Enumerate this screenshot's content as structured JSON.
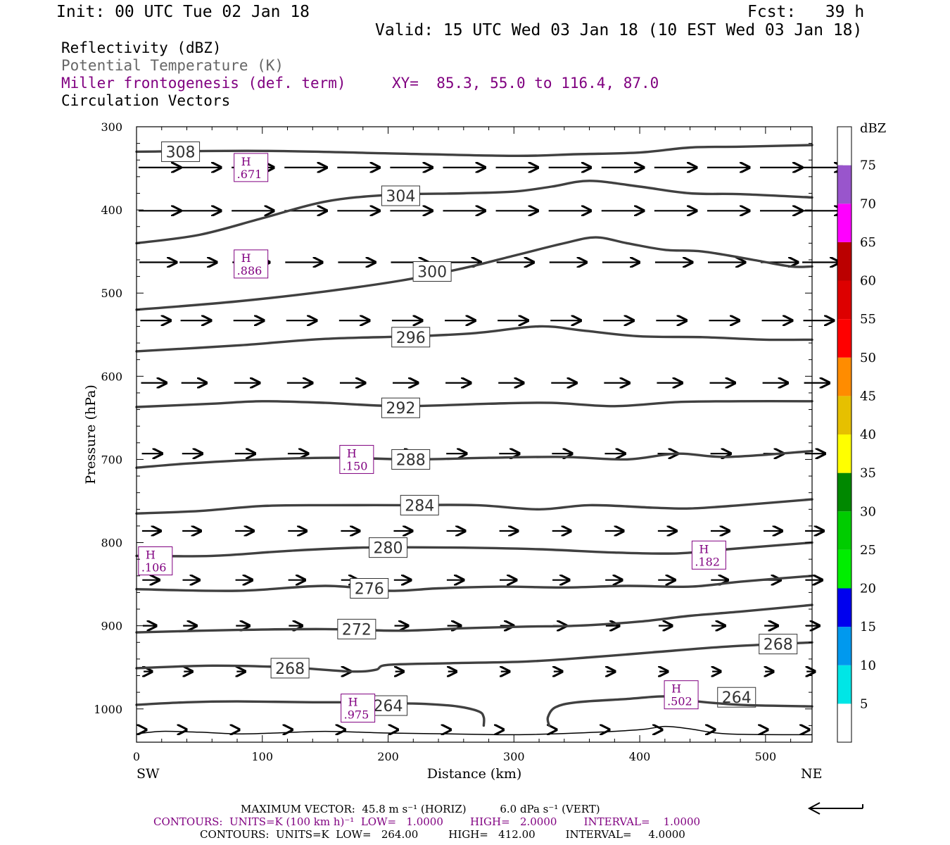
{
  "header": {
    "init": "Init: 00 UTC Tue 02 Jan 18",
    "fcst": "Fcst:   39 h",
    "valid": "Valid: 15 UTC Wed 03 Jan 18 (10 EST Wed 03 Jan 18)",
    "fields": [
      {
        "label": "Reflectivity (dBZ)",
        "color": "#000000"
      },
      {
        "label": "Potential Temperature (K)",
        "color": "#666666"
      },
      {
        "label": "Miller frontogenesis (def. term)",
        "color": "#800080"
      },
      {
        "label": "Circulation Vectors",
        "color": "#000000"
      }
    ],
    "xy": "XY=  85.3, 55.0 to 116.4, 87.0"
  },
  "footer": {
    "max_vector": "MAXIMUM VECTOR:  45.8 m s⁻¹ (HORIZ)          6.0 dPa s⁻¹ (VERT)",
    "contours_front": "CONTOURS:  UNITS=K (100 km h)⁻¹  LOW=   1.0000        HIGH=   2.0000        INTERVAL=    1.0000",
    "contours_theta": "CONTOURS:  UNITS=K  LOW=   264.00         HIGH=   412.00         INTERVAL=     4.0000"
  },
  "colors": {
    "theta": "#404040",
    "front": "#800080",
    "vector": "#000000"
  },
  "chart_data": {
    "type": "cross-section",
    "xlabel": "Distance (km)",
    "ylabel": "Pressure (hPa)",
    "xlim": [
      0,
      537
    ],
    "ylim": [
      1040,
      300
    ],
    "xticks": [
      0,
      100,
      200,
      300,
      400,
      500
    ],
    "yticks": [
      300,
      400,
      500,
      600,
      700,
      800,
      900,
      1000
    ],
    "left_end_label": "SW",
    "right_end_label": "NE",
    "colorbar": {
      "unit": "dBZ",
      "levels": [
        5,
        10,
        15,
        20,
        25,
        30,
        35,
        40,
        45,
        50,
        55,
        60,
        65,
        70,
        75
      ],
      "colors": [
        "#ffffff",
        "#00e6e6",
        "#0099ee",
        "#0000ee",
        "#00ee00",
        "#00cc00",
        "#008800",
        "#ffff00",
        "#e6c000",
        "#ff8c00",
        "#ff0000",
        "#dd0000",
        "#bb0000",
        "#ff00ff",
        "#9955cc",
        "#ffffff"
      ]
    },
    "theta_contours": [
      {
        "value": 308,
        "labels": [
          [
            35,
            330
          ]
        ],
        "points": [
          [
            0,
            330
          ],
          [
            100,
            329
          ],
          [
            200,
            332
          ],
          [
            300,
            335
          ],
          [
            350,
            333
          ],
          [
            400,
            331
          ],
          [
            440,
            325
          ],
          [
            480,
            324
          ],
          [
            537,
            322
          ]
        ]
      },
      {
        "value": 304,
        "labels": [
          [
            210,
            383
          ]
        ],
        "points": [
          [
            0,
            440
          ],
          [
            50,
            430
          ],
          [
            100,
            410
          ],
          [
            150,
            390
          ],
          [
            200,
            382
          ],
          [
            260,
            380
          ],
          [
            300,
            378
          ],
          [
            330,
            372
          ],
          [
            360,
            365
          ],
          [
            400,
            372
          ],
          [
            440,
            380
          ],
          [
            480,
            381
          ],
          [
            537,
            385
          ]
        ]
      },
      {
        "value": 300,
        "labels": [
          [
            235,
            474
          ]
        ],
        "points": [
          [
            0,
            520
          ],
          [
            80,
            510
          ],
          [
            150,
            498
          ],
          [
            210,
            485
          ],
          [
            260,
            470
          ],
          [
            300,
            455
          ],
          [
            340,
            440
          ],
          [
            365,
            433
          ],
          [
            390,
            440
          ],
          [
            420,
            448
          ],
          [
            450,
            450
          ],
          [
            490,
            460
          ],
          [
            520,
            468
          ],
          [
            537,
            468
          ]
        ]
      },
      {
        "value": 296,
        "labels": [
          [
            218,
            553
          ]
        ],
        "points": [
          [
            0,
            570
          ],
          [
            80,
            563
          ],
          [
            150,
            555
          ],
          [
            220,
            552
          ],
          [
            270,
            548
          ],
          [
            320,
            540
          ],
          [
            355,
            545
          ],
          [
            400,
            552
          ],
          [
            450,
            553
          ],
          [
            500,
            556
          ],
          [
            537,
            556
          ]
        ]
      },
      {
        "value": 292,
        "labels": [
          [
            210,
            638
          ]
        ],
        "points": [
          [
            0,
            637
          ],
          [
            60,
            633
          ],
          [
            100,
            630
          ],
          [
            150,
            632
          ],
          [
            210,
            636
          ],
          [
            280,
            633
          ],
          [
            330,
            632
          ],
          [
            380,
            636
          ],
          [
            430,
            631
          ],
          [
            480,
            630
          ],
          [
            537,
            630
          ]
        ]
      },
      {
        "value": 288,
        "labels": [
          [
            218,
            700
          ]
        ],
        "points": [
          [
            0,
            710
          ],
          [
            40,
            705
          ],
          [
            100,
            700
          ],
          [
            160,
            698
          ],
          [
            220,
            700
          ],
          [
            280,
            698
          ],
          [
            340,
            697
          ],
          [
            390,
            700
          ],
          [
            430,
            693
          ],
          [
            470,
            697
          ],
          [
            537,
            690
          ]
        ]
      },
      {
        "value": 284,
        "labels": [
          [
            225,
            755
          ]
        ],
        "points": [
          [
            0,
            765
          ],
          [
            50,
            762
          ],
          [
            100,
            756
          ],
          [
            150,
            755
          ],
          [
            210,
            755
          ],
          [
            270,
            755
          ],
          [
            320,
            760
          ],
          [
            360,
            755
          ],
          [
            410,
            758
          ],
          [
            440,
            759
          ],
          [
            480,
            755
          ],
          [
            537,
            748
          ]
        ]
      },
      {
        "value": 280,
        "labels": [
          [
            200,
            806
          ]
        ],
        "points": [
          [
            0,
            816
          ],
          [
            60,
            816
          ],
          [
            120,
            810
          ],
          [
            180,
            806
          ],
          [
            250,
            806
          ],
          [
            320,
            808
          ],
          [
            380,
            812
          ],
          [
            430,
            813
          ],
          [
            470,
            808
          ],
          [
            537,
            800
          ]
        ]
      },
      {
        "value": 276,
        "labels": [
          [
            185,
            855
          ]
        ],
        "points": [
          [
            0,
            856
          ],
          [
            80,
            858
          ],
          [
            150,
            852
          ],
          [
            200,
            858
          ],
          [
            240,
            855
          ],
          [
            290,
            853
          ],
          [
            340,
            854
          ],
          [
            390,
            852
          ],
          [
            440,
            853
          ],
          [
            480,
            847
          ],
          [
            537,
            840
          ]
        ]
      },
      {
        "value": 272,
        "labels": [
          [
            175,
            904
          ]
        ],
        "points": [
          [
            0,
            908
          ],
          [
            80,
            905
          ],
          [
            150,
            904
          ],
          [
            210,
            906
          ],
          [
            260,
            903
          ],
          [
            310,
            901
          ],
          [
            350,
            900
          ],
          [
            400,
            895
          ],
          [
            440,
            888
          ],
          [
            480,
            883
          ],
          [
            537,
            875
          ]
        ]
      },
      {
        "value": 268,
        "labels": [
          [
            122,
            951
          ],
          [
            510,
            922
          ]
        ],
        "points": [
          [
            0,
            951
          ],
          [
            60,
            948
          ],
          [
            120,
            950
          ],
          [
            170,
            955
          ],
          [
            190,
            953
          ],
          [
            200,
            947
          ],
          [
            250,
            945
          ],
          [
            310,
            943
          ],
          [
            360,
            938
          ],
          [
            410,
            932
          ],
          [
            470,
            925
          ],
          [
            537,
            920
          ]
        ]
      },
      {
        "value": 264,
        "labels": [
          [
            200,
            996
          ],
          [
            477,
            986
          ]
        ],
        "points": [
          [
            0,
            995
          ],
          [
            40,
            992
          ],
          [
            80,
            991
          ],
          [
            140,
            992
          ],
          [
            180,
            992
          ],
          [
            200,
            993
          ],
          [
            230,
            994
          ],
          [
            255,
            997
          ],
          [
            272,
            1003
          ],
          [
            276,
            1010
          ],
          [
            276,
            1020
          ]
        ]
      },
      {
        "value": 264,
        "labels": [],
        "points": [
          [
            328,
            1020
          ],
          [
            327,
            1010
          ],
          [
            333,
            998
          ],
          [
            350,
            992
          ],
          [
            390,
            988
          ],
          [
            420,
            985
          ],
          [
            440,
            990
          ],
          [
            480,
            995
          ],
          [
            537,
            997
          ]
        ]
      }
    ],
    "ground_contour": {
      "points": [
        [
          0,
          1030
        ],
        [
          20,
          1027
        ],
        [
          50,
          1028
        ],
        [
          80,
          1030
        ],
        [
          110,
          1029
        ],
        [
          150,
          1027
        ],
        [
          200,
          1029
        ],
        [
          250,
          1030
        ],
        [
          300,
          1031
        ],
        [
          350,
          1029
        ],
        [
          400,
          1025
        ],
        [
          420,
          1021
        ],
        [
          440,
          1024
        ],
        [
          470,
          1030
        ],
        [
          537,
          1031
        ]
      ]
    },
    "frontogenesis_labels": [
      {
        "x": 91,
        "p": 349,
        "hl": "H",
        "value": ".671"
      },
      {
        "x": 91,
        "p": 465,
        "hl": "H",
        "value": ".886"
      },
      {
        "x": 175,
        "p": 700,
        "hl": "H",
        "value": ".150"
      },
      {
        "x": 15,
        "p": 822,
        "hl": "H",
        "value": ".106"
      },
      {
        "x": 455,
        "p": 815,
        "hl": "H",
        "value": ".182"
      },
      {
        "x": 176,
        "p": 999,
        "hl": "H",
        "value": ".975"
      },
      {
        "x": 433,
        "p": 983,
        "hl": "H",
        "value": ".502"
      }
    ],
    "vector_columns_x": [
      10,
      42,
      84,
      126,
      168,
      210,
      252,
      294,
      336,
      378,
      420,
      462,
      504,
      537
    ],
    "vectors": [
      {
        "p": 349,
        "u": 25,
        "w": 0,
        "cols": [
          0,
          1,
          2,
          3,
          4,
          5,
          6,
          7,
          8,
          9,
          10,
          11,
          12,
          13
        ]
      },
      {
        "p": 401,
        "u": 25,
        "w": 0,
        "cols": [
          0,
          1,
          2,
          3,
          4,
          5,
          6,
          7,
          8,
          9,
          10,
          11,
          12,
          13
        ]
      },
      {
        "p": 463,
        "u": 22,
        "w": 0,
        "cols": [
          0,
          1,
          2,
          3,
          4,
          5,
          6,
          7,
          8,
          9,
          10,
          11,
          12,
          13
        ]
      },
      {
        "p": 533,
        "u": 18,
        "w": 0,
        "cols": [
          0,
          1,
          2,
          3,
          4,
          5,
          6,
          7,
          8,
          9,
          10,
          11,
          12,
          13
        ]
      },
      {
        "p": 608,
        "u": 15,
        "w": 0,
        "cols": [
          0,
          1,
          2,
          3,
          4,
          5,
          6,
          7,
          8,
          9,
          10,
          11,
          12,
          13
        ]
      },
      {
        "p": 693,
        "u": 12,
        "w": 0,
        "cols": [
          0,
          1,
          2,
          3,
          4,
          5,
          6,
          7,
          8,
          9,
          10,
          11,
          12,
          13
        ]
      },
      {
        "p": 786,
        "u": 11,
        "w": 0,
        "cols": [
          0,
          1,
          2,
          3,
          4,
          5,
          6,
          7,
          8,
          9,
          10,
          11,
          12,
          13
        ]
      },
      {
        "p": 845,
        "u": 10,
        "w": 0,
        "cols": [
          0,
          1,
          2,
          3,
          4,
          5,
          6,
          7,
          8,
          9,
          10,
          11,
          12,
          13
        ]
      },
      {
        "p": 900,
        "u": 8,
        "w": 0,
        "cols": [
          0,
          1,
          2,
          3,
          4,
          5,
          6,
          7,
          8,
          9,
          10,
          11,
          12,
          13
        ]
      },
      {
        "p": 955,
        "u": 5,
        "w": 0,
        "cols": [
          0,
          1,
          2,
          3,
          4,
          5,
          6,
          7,
          8,
          9,
          10,
          11,
          12,
          13
        ]
      },
      {
        "p": 1025,
        "u": 1,
        "w": 0,
        "cols": [
          0,
          1,
          2,
          3,
          4,
          5,
          6,
          7,
          8,
          9,
          10,
          11,
          12,
          13
        ]
      }
    ],
    "reference_vector": "45.8 m s-1"
  }
}
